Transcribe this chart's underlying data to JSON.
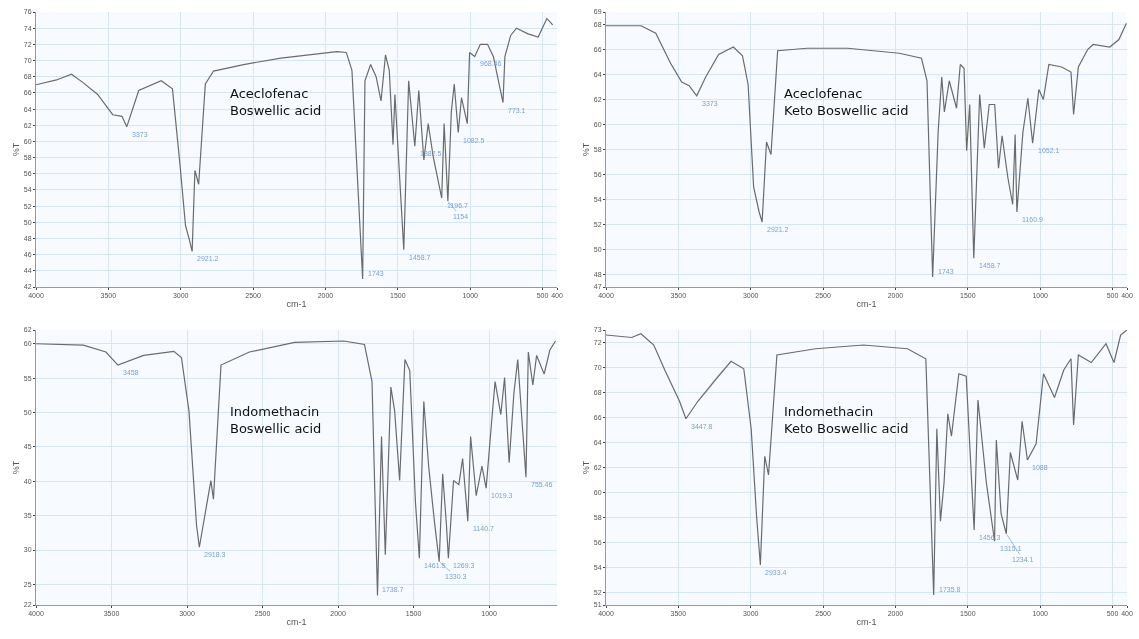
{
  "chart_data": [
    {
      "type": "line",
      "xlabel": "cm-1",
      "ylabel": "%T",
      "grid": true,
      "xlim": [
        4000,
        400
      ],
      "xticks": [
        4000,
        3500,
        3000,
        2500,
        2000,
        1500,
        1000,
        500,
        400
      ],
      "ylim": [
        42,
        76
      ],
      "yticks": [
        42,
        44,
        46,
        48,
        50,
        52,
        54,
        56,
        58,
        60,
        62,
        64,
        66,
        68,
        70,
        72,
        74,
        76
      ],
      "series": [
        {
          "color": "#6b6b6b",
          "x": [
            4000,
            3858,
            3755,
            3677,
            3574,
            3470,
            3406,
            3373,
            3290,
            3135,
            3057,
            3006,
            2967,
            2941,
            2921.2,
            2902,
            2876,
            2830,
            2773,
            2566,
            2308,
            1921,
            1856,
            1817,
            1743,
            1727,
            1688,
            1650,
            1616,
            1585,
            1559,
            1533,
            1520,
            1458.7,
            1425,
            1382.5,
            1355,
            1320,
            1290,
            1255,
            1196.7,
            1180,
            1154,
            1130,
            1110,
            1082.5,
            1060,
            1020,
            1004,
            968.46,
            930,
            880,
            840,
            773.1,
            760,
            720,
            680,
            600,
            530,
            470,
            430
          ],
          "values": [
            67.0,
            67.6,
            68.3,
            67.3,
            65.8,
            63.3,
            63.1,
            61.8,
            66.3,
            67.5,
            66.5,
            57.3,
            49.6,
            47.9,
            46.4,
            56.4,
            54.7,
            67.1,
            68.7,
            69.5,
            70.3,
            71.1,
            71.0,
            68.8,
            43.0,
            67.5,
            69.5,
            68.0,
            65.0,
            70.7,
            68.8,
            59.6,
            65.8,
            46.6,
            67.5,
            59.4,
            66.3,
            57.7,
            62.2,
            58.1,
            53.0,
            62.2,
            52.6,
            63.7,
            67.1,
            61.1,
            65.4,
            62.2,
            71.0,
            70.5,
            72.0,
            72.0,
            70.5,
            64.8,
            70.5,
            73.1,
            74.0,
            73.3,
            72.9,
            75.2,
            74.4
          ]
        }
      ],
      "annotations": [
        "Aceclofenac\nBoswellic acid",
        {
          "text": "3373",
          "x": 3373,
          "y": 61.8
        },
        {
          "text": "2921.2",
          "x": 2921.2,
          "y": 46.4
        },
        {
          "text": "1743",
          "x": 1743,
          "y": 43.0
        },
        {
          "text": "1458.7",
          "x": 1458.7,
          "y": 46.6
        },
        {
          "text": "1382.5",
          "x": 1382.5,
          "y": 59.4
        },
        {
          "text": "1196.7",
          "x": 1196.7,
          "y": 53.0
        },
        {
          "text": "1154",
          "x": 1154,
          "y": 52.6
        },
        {
          "text": "1082.5",
          "x": 1082.5,
          "y": 61.1
        },
        {
          "text": "968.46",
          "x": 968.46,
          "y": 70.5
        },
        {
          "text": "773.1",
          "x": 773.1,
          "y": 64.8
        }
      ]
    },
    {
      "type": "line",
      "xlabel": "cm-1",
      "ylabel": "%T",
      "grid": true,
      "xlim": [
        4000,
        400
      ],
      "xticks": [
        4000,
        3500,
        3000,
        2500,
        2000,
        1500,
        1000,
        500,
        400
      ],
      "ylim": [
        47,
        69
      ],
      "yticks": [
        47,
        48,
        50,
        52,
        54,
        56,
        58,
        60,
        62,
        64,
        66,
        68,
        69
      ],
      "series": [
        {
          "color": "#6b6b6b",
          "x": [
            4000,
            3758,
            3656,
            3554,
            3477,
            3426,
            3373,
            3311,
            3222,
            3120,
            3057,
            3018,
            2980,
            2942,
            2921.2,
            2891,
            2860,
            2814,
            2610,
            2330,
            1973,
            1820,
            1782,
            1743,
            1705,
            1680,
            1662,
            1628,
            1578,
            1552,
            1526,
            1508,
            1487,
            1458.7,
            1418,
            1386,
            1352,
            1314,
            1288,
            1263,
            1224,
            1190,
            1173,
            1160.9,
            1119,
            1085,
            1052.1,
            1009,
            978,
            940,
            851,
            787,
            769,
            736,
            672,
            634,
            519,
            456,
            404
          ],
          "values": [
            67.9,
            67.9,
            67.3,
            64.9,
            63.4,
            63.1,
            62.3,
            63.8,
            65.6,
            66.2,
            65.5,
            63.2,
            55.0,
            53.0,
            52.2,
            58.6,
            57.6,
            65.9,
            66.1,
            66.1,
            65.7,
            65.3,
            63.5,
            47.8,
            59.4,
            63.8,
            61.0,
            63.5,
            61.3,
            64.8,
            64.5,
            57.9,
            61.6,
            49.3,
            62.4,
            58.1,
            61.6,
            61.6,
            56.5,
            59.1,
            55.8,
            53.6,
            59.2,
            53.0,
            59.4,
            62.1,
            58.5,
            62.8,
            62.0,
            64.8,
            64.6,
            64.2,
            60.8,
            64.6,
            66.0,
            66.4,
            66.2,
            66.8,
            68.1
          ]
        }
      ],
      "annotations": [
        "Aceclofenac\nKeto Boswellic acid",
        {
          "text": "3373",
          "x": 3373,
          "y": 62.3
        },
        {
          "text": "2921.2",
          "x": 2921.2,
          "y": 52.2
        },
        {
          "text": "1743",
          "x": 1743,
          "y": 47.8
        },
        {
          "text": "1458.7",
          "x": 1458.7,
          "y": 49.3
        },
        {
          "text": "1160.9",
          "x": 1160.9,
          "y": 53.0
        },
        {
          "text": "1052.1",
          "x": 1052.1,
          "y": 58.5
        }
      ]
    },
    {
      "type": "line",
      "xlabel": "cm-1",
      "ylabel": "%T",
      "grid": true,
      "xlim": [
        4000,
        550
      ],
      "xticks": [
        4000,
        3500,
        3000,
        2500,
        2000,
        1500,
        1000
      ],
      "ylim": [
        22,
        62
      ],
      "yticks": [
        22,
        25,
        30,
        35,
        40,
        45,
        50,
        55,
        60,
        62
      ],
      "series": [
        {
          "color": "#6b6b6b",
          "x": [
            4000,
            3687,
            3537,
            3458,
            3287,
            3087,
            3037,
            2987,
            2937,
            2918.3,
            2842,
            2825,
            2775,
            2587,
            2287,
            1962,
            1825,
            1775,
            1738.7,
            1712,
            1687,
            1650,
            1625,
            1592,
            1557,
            1525,
            1487,
            1461.5,
            1432,
            1400,
            1362,
            1330.3,
            1307,
            1282,
            1269.3,
            1235,
            1200,
            1175,
            1140.7,
            1122,
            1085,
            1047,
            1019.3,
            985,
            960,
            922,
            897,
            867,
            835,
            810,
            755.46,
            740,
            710,
            685,
            635,
            597,
            560
          ],
          "values": [
            60.0,
            59.8,
            58.8,
            56.9,
            58.3,
            58.9,
            58.0,
            50.2,
            33.6,
            30.4,
            40.1,
            37.4,
            56.9,
            58.8,
            60.2,
            60.4,
            59.9,
            54.5,
            23.4,
            46.5,
            29.3,
            53.7,
            50.2,
            40.1,
            57.7,
            56.1,
            36.8,
            28.8,
            51.6,
            42.2,
            34.2,
            28.3,
            41.1,
            33.6,
            28.8,
            40.1,
            39.5,
            43.3,
            34.2,
            46.5,
            37.9,
            42.2,
            39.0,
            48.1,
            54.5,
            49.7,
            55.1,
            42.7,
            52.9,
            57.7,
            40.6,
            58.8,
            54.0,
            58.3,
            55.6,
            59.1,
            60.4
          ]
        }
      ],
      "annotations": [
        "Indomethacin\nBoswellic acid",
        {
          "text": "3458",
          "x": 3458,
          "y": 56.9
        },
        {
          "text": "2918.3",
          "x": 2918.3,
          "y": 30.4
        },
        {
          "text": "1738.7",
          "x": 1738.7,
          "y": 23.4
        },
        {
          "text": "1461.5",
          "x": 1461.5,
          "y": 28.8
        },
        {
          "text": "1330.3",
          "x": 1330.3,
          "y": 28.3
        },
        {
          "text": "1269.3",
          "x": 1269.3,
          "y": 28.8
        },
        {
          "text": "1140.7",
          "x": 1140.7,
          "y": 34.2
        },
        {
          "text": "1019.3",
          "x": 1019.3,
          "y": 39.0
        },
        {
          "text": "755.46",
          "x": 755.46,
          "y": 40.6
        }
      ]
    },
    {
      "type": "line",
      "xlabel": "cm-1",
      "ylabel": "%T",
      "grid": true,
      "xlim": [
        4000,
        400
      ],
      "xticks": [
        4000,
        3500,
        3000,
        2500,
        2000,
        1500,
        1000,
        500,
        400
      ],
      "ylim": [
        51,
        73
      ],
      "yticks": [
        51,
        52,
        54,
        56,
        58,
        60,
        62,
        64,
        66,
        68,
        70,
        72,
        73
      ],
      "series": [
        {
          "color": "#6b6b6b",
          "x": [
            4000,
            3822,
            3759,
            3670,
            3594,
            3492,
            3447.8,
            3365,
            3238,
            3136,
            3048,
            2997,
            2959,
            2933.4,
            2903,
            2877,
            2819,
            2552,
            2222,
            1917,
            1790,
            1735.8,
            1714,
            1689,
            1664,
            1638,
            1613,
            1562,
            1511,
            1456.3,
            1430,
            1372,
            1315.1,
            1303,
            1270,
            1234.1,
            1206,
            1155,
            1125,
            1088,
            1028,
            977,
            901,
            837,
            787,
            769,
            736,
            647,
            545,
            490,
            444,
            400
          ],
          "values": [
            72.6,
            72.4,
            72.7,
            71.8,
            69.8,
            67.3,
            65.9,
            67.3,
            69.1,
            70.5,
            69.9,
            65.1,
            58.0,
            54.2,
            62.9,
            61.4,
            71.0,
            71.5,
            71.8,
            71.5,
            70.7,
            51.8,
            65.1,
            57.7,
            60.8,
            66.3,
            64.5,
            69.5,
            69.3,
            57.0,
            67.4,
            60.8,
            56.1,
            64.2,
            58.3,
            56.7,
            63.2,
            61.0,
            65.7,
            62.6,
            63.9,
            69.5,
            67.6,
            69.8,
            70.7,
            65.4,
            71.0,
            70.4,
            71.9,
            70.4,
            72.6,
            73.0
          ]
        }
      ],
      "annotations": [
        "Indomethacin\nKeto Boswellic acid",
        {
          "text": "3447.8",
          "x": 3447.8,
          "y": 65.9
        },
        {
          "text": "2933.4",
          "x": 2933.4,
          "y": 54.2
        },
        {
          "text": "1735.8",
          "x": 1735.8,
          "y": 51.8
        },
        {
          "text": "1456.3",
          "x": 1456.3,
          "y": 57.0
        },
        {
          "text": "1315.1",
          "x": 1315.1,
          "y": 56.1
        },
        {
          "text": "1234.1",
          "x": 1234.1,
          "y": 56.7
        },
        {
          "text": "1088",
          "x": 1088,
          "y": 62.6
        }
      ]
    }
  ]
}
